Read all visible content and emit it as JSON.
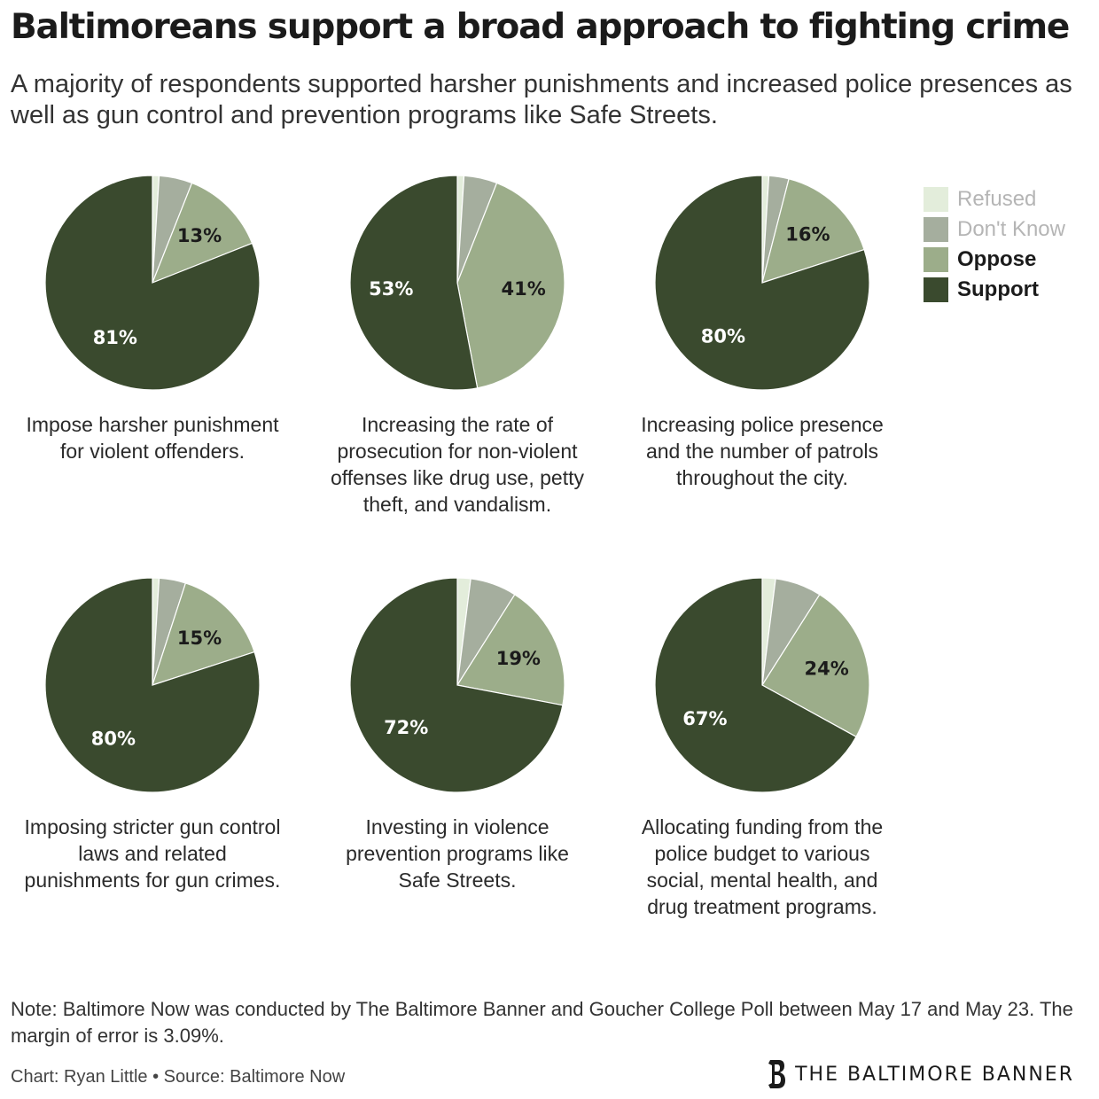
{
  "title": "Baltimoreans support a broad approach to fighting crime",
  "subtitle": "A majority of respondents supported harsher punishments and increased police presences as well as gun control and prevention programs like Safe Streets.",
  "legend": [
    {
      "label": "Refused",
      "color": "#e3eddb"
    },
    {
      "label": "Don't Know",
      "color": "#a5ae9e"
    },
    {
      "label": "Oppose",
      "color": "#9cad8a"
    },
    {
      "label": "Support",
      "color": "#3a4a2e"
    }
  ],
  "chart_data": [
    {
      "type": "pie",
      "caption": "Impose harsher punishment for violent offenders.",
      "slices": [
        {
          "name": "Refused",
          "value": 1
        },
        {
          "name": "Don't Know",
          "value": 5
        },
        {
          "name": "Oppose",
          "value": 13
        },
        {
          "name": "Support",
          "value": 81
        }
      ]
    },
    {
      "type": "pie",
      "caption": "Increasing the rate of prosecution for non-violent offenses like drug use, petty theft, and vandalism.",
      "slices": [
        {
          "name": "Refused",
          "value": 1
        },
        {
          "name": "Don't Know",
          "value": 5
        },
        {
          "name": "Oppose",
          "value": 41
        },
        {
          "name": "Support",
          "value": 53
        }
      ]
    },
    {
      "type": "pie",
      "caption": "Increasing police presence and the number of patrols throughout the city.",
      "slices": [
        {
          "name": "Refused",
          "value": 1
        },
        {
          "name": "Don't Know",
          "value": 3
        },
        {
          "name": "Oppose",
          "value": 16
        },
        {
          "name": "Support",
          "value": 80
        }
      ]
    },
    {
      "type": "pie",
      "caption": "Imposing stricter gun control laws and related punishments for gun crimes.",
      "slices": [
        {
          "name": "Refused",
          "value": 1
        },
        {
          "name": "Don't Know",
          "value": 4
        },
        {
          "name": "Oppose",
          "value": 15
        },
        {
          "name": "Support",
          "value": 80
        }
      ]
    },
    {
      "type": "pie",
      "caption": "Investing in violence prevention programs like Safe Streets.",
      "slices": [
        {
          "name": "Refused",
          "value": 2
        },
        {
          "name": "Don't Know",
          "value": 7
        },
        {
          "name": "Oppose",
          "value": 19
        },
        {
          "name": "Support",
          "value": 72
        }
      ]
    },
    {
      "type": "pie",
      "caption": "Allocating funding from the police budget to various social, mental health, and drug treatment programs.",
      "slices": [
        {
          "name": "Refused",
          "value": 2
        },
        {
          "name": "Don't Know",
          "value": 7
        },
        {
          "name": "Oppose",
          "value": 24
        },
        {
          "name": "Support",
          "value": 67
        }
      ]
    }
  ],
  "note": "Note: Baltimore Now was conducted by The Baltimore Banner and Goucher College Poll between May 17 and May 23. The margin of error is 3.09%.",
  "credit": "Chart: Ryan Little • Source: Baltimore Now",
  "brand": "THE BALTIMORE BANNER"
}
